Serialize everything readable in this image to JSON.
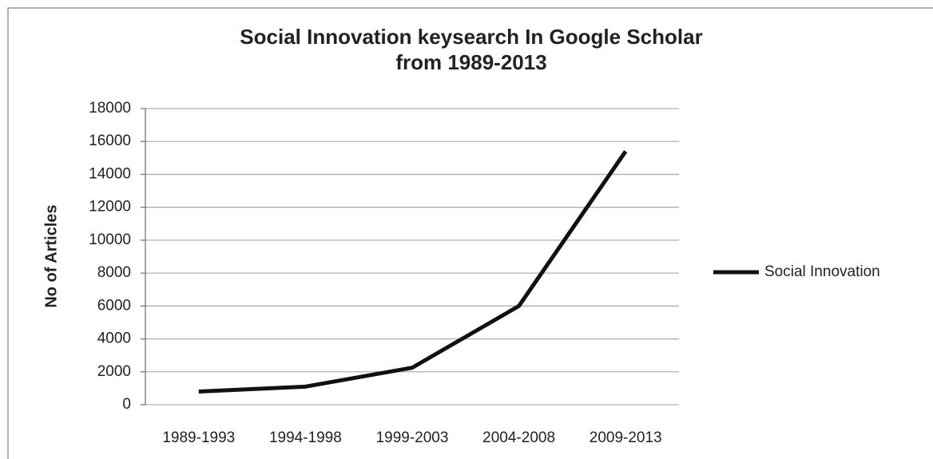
{
  "chart_data": {
    "type": "line",
    "title": [
      "Social Innovation keysearch In Google Scholar",
      "from 1989-2013"
    ],
    "y_label": "No of Articles",
    "categories": [
      "1989-1993",
      "1994-1998",
      "1999-2003",
      "2004-2008",
      "2009-2013"
    ],
    "series": [
      {
        "name": "Social Innovation",
        "color": "#111111",
        "values": [
          800,
          1100,
          2250,
          6000,
          15400
        ]
      }
    ],
    "ylim": [
      0,
      18000
    ],
    "yticks": [
      0,
      2000,
      4000,
      6000,
      8000,
      10000,
      12000,
      14000,
      16000,
      18000
    ],
    "grid": true,
    "legend": "right"
  }
}
